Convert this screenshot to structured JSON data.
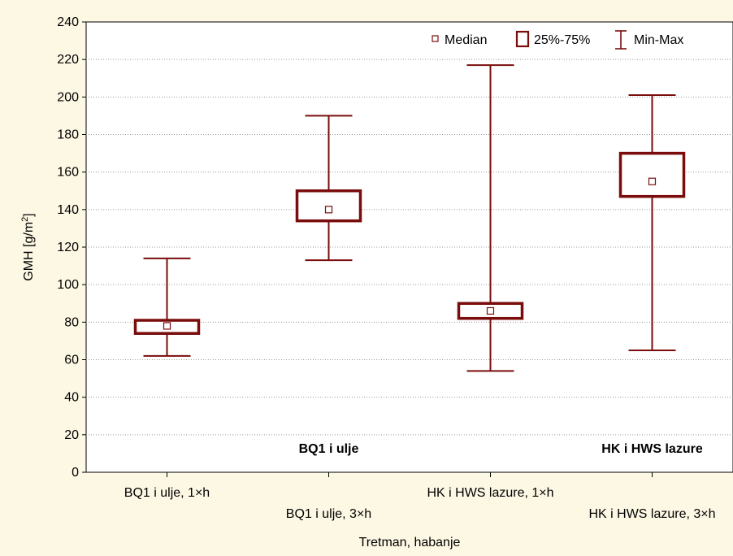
{
  "colors": {
    "background": "#fdf8e4",
    "plot_background": "#ffffff",
    "box": "#7a0c0c",
    "grid": "#9a9a9a"
  },
  "chart_data": {
    "type": "boxplot",
    "xlabel": "Tretman, habanje",
    "ylabel": "GMH [g/m²]",
    "ylabel_main": "GMH [g/m",
    "ylabel_sup": "2",
    "ylabel_end": "]",
    "ylim": [
      0,
      240
    ],
    "yticks": [
      0,
      20,
      40,
      60,
      80,
      100,
      120,
      140,
      160,
      180,
      200,
      220,
      240
    ],
    "grid": "horizontal dotted",
    "legend": {
      "placement": "top-right",
      "items": [
        {
          "symbol": "median-square",
          "label": "Median"
        },
        {
          "symbol": "box",
          "label": "25%-75%"
        },
        {
          "symbol": "whisker",
          "label": "Min-Max"
        }
      ]
    },
    "group_labels": [
      {
        "label": "BQ1 i ulje",
        "center": 1.5
      },
      {
        "label": "HK i HWS lazure",
        "center": 3.5
      }
    ],
    "categories": [
      "BQ1 i ulje, 1×h",
      "BQ1 i ulje, 3×h",
      "HK i HWS lazure, 1×h",
      "HK i HWS lazure, 3×h"
    ],
    "series": [
      {
        "min": 62,
        "q1": 74,
        "median": 78,
        "q3": 81,
        "max": 114
      },
      {
        "min": 113,
        "q1": 134,
        "median": 140,
        "q3": 150,
        "max": 190
      },
      {
        "min": 54,
        "q1": 82,
        "median": 86,
        "q3": 90,
        "max": 217
      },
      {
        "min": 65,
        "q1": 147,
        "median": 155,
        "q3": 170,
        "max": 201
      }
    ]
  }
}
